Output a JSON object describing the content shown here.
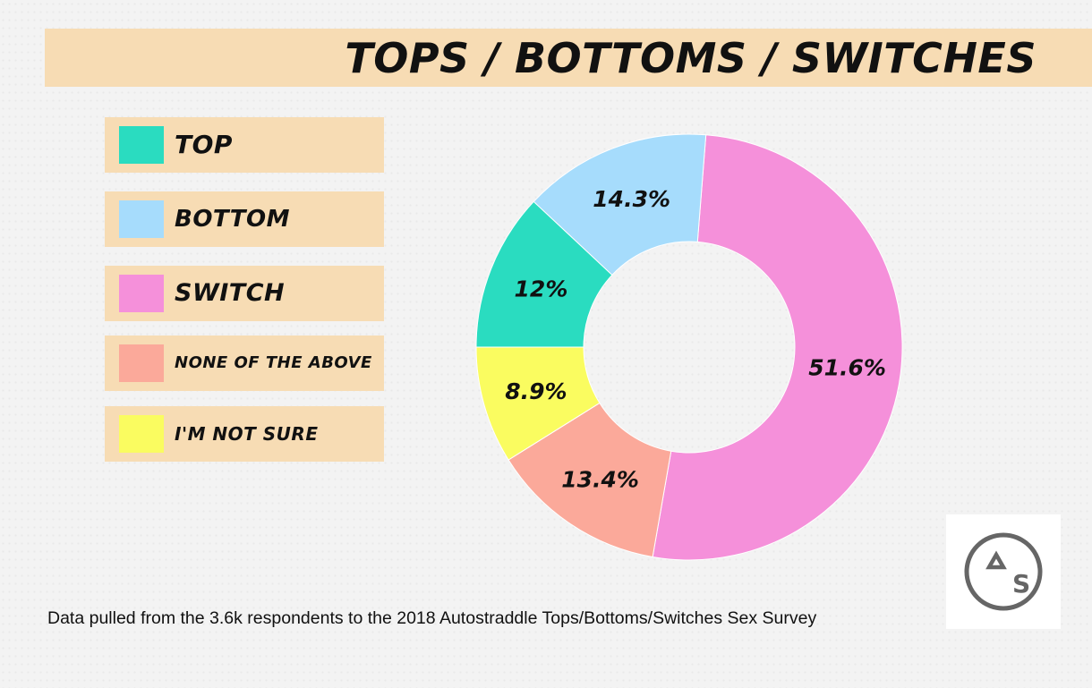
{
  "title": "TOPS / BOTTOMS / SWITCHES",
  "footnote": "Data pulled from the 3.6k respondents to the 2018 Autostraddle Tops/Bottoms/Switches Sex Survey",
  "logo": {
    "text": "AS",
    "icon": "autostraddle-logo-icon"
  },
  "legend": [
    {
      "label": "TOP",
      "color": "#2adcc0"
    },
    {
      "label": "BOTTOM",
      "color": "#a6dcfc"
    },
    {
      "label": "SWITCH",
      "color": "#f590da"
    },
    {
      "label": "NONE OF THE ABOVE",
      "color": "#fba99a"
    },
    {
      "label": "I'M NOT SURE",
      "color": "#fafc60"
    }
  ],
  "chart_data": {
    "type": "pie",
    "donut": true,
    "slices": [
      {
        "label": "SWITCH",
        "value": 51.6,
        "display": "51.6%",
        "color": "#f590da"
      },
      {
        "label": "NONE OF THE ABOVE",
        "value": 13.4,
        "display": "13.4%",
        "color": "#fba99a"
      },
      {
        "label": "I'M NOT SURE",
        "value": 8.9,
        "display": "8.9%",
        "color": "#fafc60"
      },
      {
        "label": "TOP",
        "value": 12,
        "display": "12%",
        "color": "#2adcc0"
      },
      {
        "label": "BOTTOM",
        "value": 14.3,
        "display": "14.3%",
        "color": "#a6dcfc"
      }
    ],
    "legend_position": "left"
  }
}
